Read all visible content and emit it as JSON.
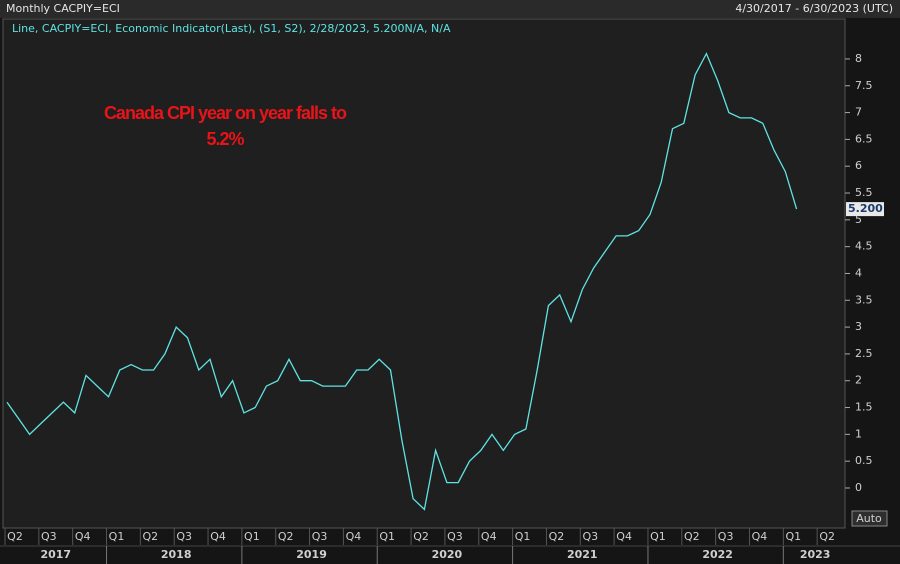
{
  "chart_data": {
    "type": "line",
    "title": "Monthly CACPIY=ECI",
    "date_range": "4/30/2017 - 6/30/2023 (UTC)",
    "annotation": [
      "Canada CPI year on year falls to",
      "5.2%"
    ],
    "auto_button": "Auto",
    "x": [
      "2017-04",
      "2017-05",
      "2017-06",
      "2017-07",
      "2017-08",
      "2017-09",
      "2017-10",
      "2017-11",
      "2017-12",
      "2018-01",
      "2018-02",
      "2018-03",
      "2018-04",
      "2018-05",
      "2018-06",
      "2018-07",
      "2018-08",
      "2018-09",
      "2018-10",
      "2018-11",
      "2018-12",
      "2019-01",
      "2019-02",
      "2019-03",
      "2019-04",
      "2019-05",
      "2019-06",
      "2019-07",
      "2019-08",
      "2019-09",
      "2019-10",
      "2019-11",
      "2019-12",
      "2020-01",
      "2020-02",
      "2020-03",
      "2020-04",
      "2020-05",
      "2020-06",
      "2020-07",
      "2020-08",
      "2020-09",
      "2020-10",
      "2020-11",
      "2020-12",
      "2021-01",
      "2021-02",
      "2021-03",
      "2021-04",
      "2021-05",
      "2021-06",
      "2021-07",
      "2021-08",
      "2021-09",
      "2021-10",
      "2021-11",
      "2021-12",
      "2022-01",
      "2022-02",
      "2022-03",
      "2022-04",
      "2022-05",
      "2022-06",
      "2022-07",
      "2022-08",
      "2022-09",
      "2022-10",
      "2022-11",
      "2022-12",
      "2023-01",
      "2023-02"
    ],
    "series": [
      {
        "name": "Line, CACPIY=ECI, Economic Indicator(Last), (S1, S2), 2/28/2023, 5.200N/A, N/A",
        "color": "#5fe3e3",
        "values": [
          1.6,
          1.3,
          1.0,
          1.2,
          1.4,
          1.6,
          1.4,
          2.1,
          1.9,
          1.7,
          2.2,
          2.3,
          2.2,
          2.2,
          2.5,
          3.0,
          2.8,
          2.2,
          2.4,
          1.7,
          2.0,
          1.4,
          1.5,
          1.9,
          2.0,
          2.4,
          2.0,
          2.0,
          1.9,
          1.9,
          1.9,
          2.2,
          2.2,
          2.4,
          2.2,
          0.9,
          -0.2,
          -0.4,
          0.7,
          0.1,
          0.1,
          0.5,
          0.7,
          1.0,
          0.7,
          1.0,
          1.1,
          2.2,
          3.4,
          3.6,
          3.1,
          3.7,
          4.1,
          4.4,
          4.7,
          4.7,
          4.8,
          5.1,
          5.7,
          6.7,
          6.8,
          7.7,
          8.1,
          7.6,
          7.0,
          6.9,
          6.9,
          6.8,
          6.3,
          5.9,
          5.2
        ],
        "value_labels": [
          null,
          null,
          null,
          null,
          null,
          null,
          null,
          null,
          null,
          null,
          null,
          null,
          null,
          null,
          null,
          null,
          null,
          null,
          null,
          null,
          null,
          null,
          null,
          null,
          null,
          null,
          null,
          null,
          null,
          null,
          null,
          null,
          null,
          null,
          null,
          null,
          null,
          null,
          null,
          null,
          null,
          null,
          null,
          null,
          null,
          null,
          null,
          null,
          null,
          null,
          null,
          null,
          null,
          null,
          null,
          null,
          null,
          null,
          null,
          null,
          null,
          null,
          null,
          null,
          null,
          null,
          null,
          null,
          null,
          null,
          "5.200"
        ]
      }
    ],
    "ylim": [
      -0.75,
      8.4
    ],
    "yticks": [
      0,
      0.5,
      1,
      1.5,
      2,
      2.5,
      3,
      3.5,
      4,
      4.5,
      5,
      5.5,
      6,
      6.5,
      7,
      7.5,
      8
    ],
    "xticks": [
      {
        "value": "2017-04",
        "label": "Q2"
      },
      {
        "value": "2017-07",
        "label": "Q3"
      },
      {
        "value": "2017-10",
        "label": "Q4"
      },
      {
        "value": "2018-01",
        "label": "Q1"
      },
      {
        "value": "2018-04",
        "label": "Q2"
      },
      {
        "value": "2018-07",
        "label": "Q3"
      },
      {
        "value": "2018-10",
        "label": "Q4"
      },
      {
        "value": "2019-01",
        "label": "Q1"
      },
      {
        "value": "2019-04",
        "label": "Q2"
      },
      {
        "value": "2019-07",
        "label": "Q3"
      },
      {
        "value": "2019-10",
        "label": "Q4"
      },
      {
        "value": "2020-01",
        "label": "Q1"
      },
      {
        "value": "2020-04",
        "label": "Q2"
      },
      {
        "value": "2020-07",
        "label": "Q3"
      },
      {
        "value": "2020-10",
        "label": "Q4"
      },
      {
        "value": "2021-01",
        "label": "Q1"
      },
      {
        "value": "2021-04",
        "label": "Q2"
      },
      {
        "value": "2021-07",
        "label": "Q3"
      },
      {
        "value": "2021-10",
        "label": "Q4"
      },
      {
        "value": "2022-01",
        "label": "Q1"
      },
      {
        "value": "2022-04",
        "label": "Q2"
      },
      {
        "value": "2022-07",
        "label": "Q3"
      },
      {
        "value": "2022-10",
        "label": "Q4"
      },
      {
        "value": "2023-01",
        "label": "Q1"
      },
      {
        "value": "2023-04",
        "label": "Q2"
      }
    ],
    "year_ticks": [
      2017,
      2018,
      2019,
      2020,
      2021,
      2022,
      2023
    ],
    "grid": false
  }
}
